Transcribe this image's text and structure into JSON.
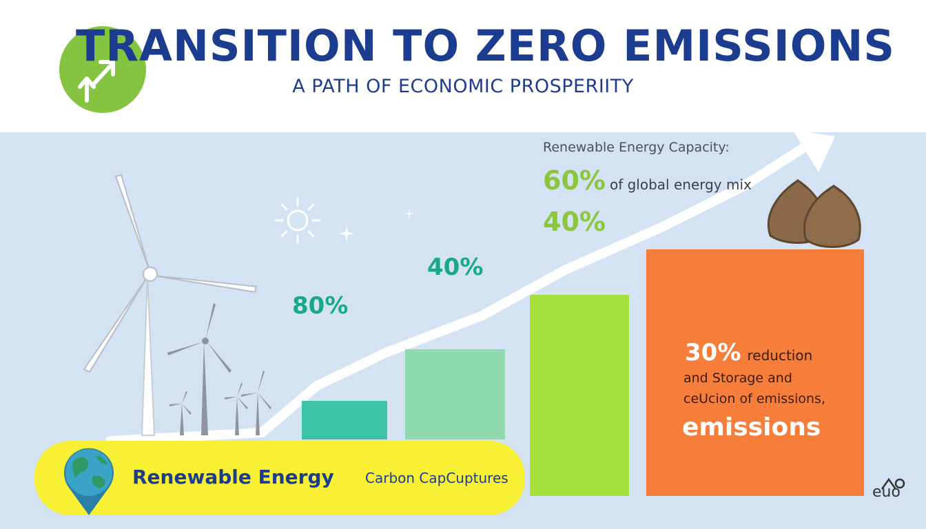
{
  "colors": {
    "title": "#1c3d8f",
    "accent_green": "#7dc43a",
    "teal": "#1aa88a",
    "bar_teal": "#3cc3a6",
    "bar_mint": "#8ed9ad",
    "bar_lime": "#a4e03c",
    "orange": "#f77e3a",
    "pill_yellow": "#f7f034",
    "panel_bg": "#d4e3f4",
    "trend_arrow": "#ffffff"
  },
  "header": {
    "title": "TRANSITION TO ZERO EMISSIONS",
    "subtitle": "A PATH OF ECONOMIC PROSPERIITY",
    "logo_icon": "growth-arrows-icon"
  },
  "capacity": {
    "heading": "Renewable Energy Capacity:",
    "stat1_value": "60%",
    "stat1_text": "of global energy mix",
    "stat2_value": "40%"
  },
  "bars": [
    {
      "label": "80%"
    },
    {
      "label": "40%"
    },
    {
      "label": ""
    }
  ],
  "orange_box": {
    "pct": "30%",
    "line1": "reduction",
    "line2": "and Storage and",
    "line3": "ceUcion of emissions,",
    "line4": "emissions"
  },
  "legend": {
    "item1": "Renewable Energy",
    "item2": "Carbon CapCuptures",
    "icon": "globe-pin-icon"
  },
  "corner": {
    "text": "euo"
  }
}
